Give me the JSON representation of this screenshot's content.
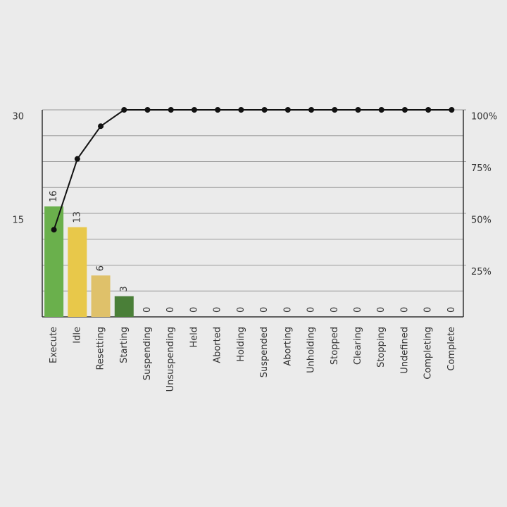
{
  "chart_data": {
    "type": "pareto",
    "categories": [
      "Execute",
      "Idle",
      "Resetting",
      "Starting",
      "Suspending",
      "Unsuspending",
      "Held",
      "Aborted",
      "Holding",
      "Suspended",
      "Aborting",
      "Unholding",
      "Stopped",
      "Clearing",
      "Stopping",
      "Undefined",
      "Completing",
      "Complete"
    ],
    "series": [
      {
        "values": [
          16,
          13,
          6,
          3,
          0,
          0,
          0,
          0,
          0,
          0,
          0,
          0,
          0,
          0,
          0,
          0,
          0,
          0
        ],
        "colors": [
          "#6ab04c",
          "#e8c84a",
          "#dfc16a",
          "#4a7f38",
          "#6ab04c",
          "#6ab04c",
          "#6ab04c",
          "#6ab04c",
          "#6ab04c",
          "#6ab04c",
          "#6ab04c",
          "#6ab04c",
          "#6ab04c",
          "#6ab04c",
          "#6ab04c",
          "#6ab04c",
          "#6ab04c",
          "#6ab04c"
        ]
      },
      {
        "axis": "y2",
        "color": "#111111",
        "values": [
          42.1,
          76.3,
          92.1,
          100,
          100,
          100,
          100,
          100,
          100,
          100,
          100,
          100,
          100,
          100,
          100,
          100,
          100,
          100
        ]
      }
    ],
    "ylim": [
      0,
      30
    ],
    "yticks": [
      15,
      30
    ],
    "ygrid": [
      3.75,
      7.5,
      11.25,
      18.75,
      22.5,
      26.25
    ],
    "y2lim": [
      0,
      100
    ],
    "y2ticks": [
      {
        "value": 25,
        "label": "25%"
      },
      {
        "value": 50,
        "label": "50%"
      },
      {
        "value": 75,
        "label": "75%"
      },
      {
        "value": 100,
        "label": "100%"
      }
    ],
    "grid": true
  }
}
